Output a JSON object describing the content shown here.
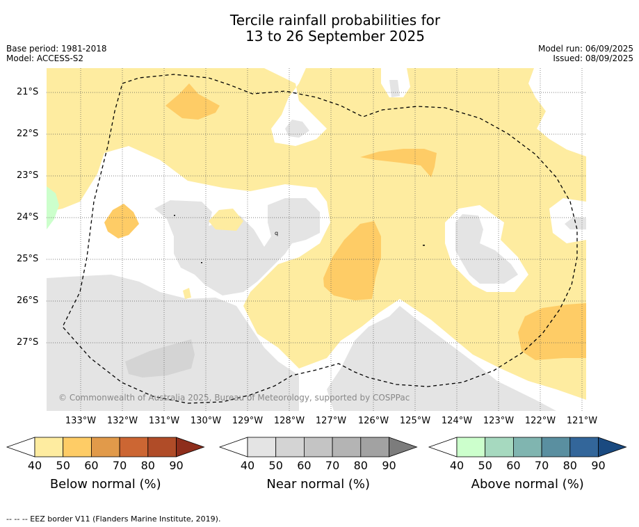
{
  "title_line1": "Tercile rainfall probabilities for",
  "title_line2": "13 to 26 September 2025",
  "meta_left": {
    "base_period": "Base period: 1981-2018",
    "model": "Model: ACCESS-S2"
  },
  "meta_right": {
    "model_run": "Model run: 06/09/2025",
    "issued": "Issued: 08/09/2025"
  },
  "copyright": "© Commonwealth of Australia 2025, Bureau of Meteorology, supported by COSPPac",
  "lat_labels": [
    "21°S",
    "22°S",
    "23°S",
    "24°S",
    "25°S",
    "26°S",
    "27°S"
  ],
  "lon_labels": [
    "133°W",
    "132°W",
    "131°W",
    "130°W",
    "129°W",
    "128°W",
    "127°W",
    "126°W",
    "125°W",
    "124°W",
    "123°W",
    "122°W",
    "121°W"
  ],
  "colorbars": [
    {
      "title": "Below normal (%)",
      "ticks": [
        "40",
        "50",
        "60",
        "70",
        "80",
        "90"
      ],
      "colors": [
        "#ffffff",
        "#feeca0",
        "#fecc66",
        "#e19a4a",
        "#cc6633",
        "#b04c28",
        "#8e2e1c"
      ]
    },
    {
      "title": "Near normal (%)",
      "ticks": [
        "40",
        "50",
        "60",
        "70",
        "80",
        "90"
      ],
      "colors": [
        "#ffffff",
        "#e4e4e4",
        "#d4d4d4",
        "#c4c4c4",
        "#b4b4b4",
        "#a2a2a2",
        "#7c7c7c"
      ]
    },
    {
      "title": "Above normal (%)",
      "ticks": [
        "40",
        "50",
        "60",
        "70",
        "80",
        "90"
      ],
      "colors": [
        "#ffffff",
        "#ccffcc",
        "#a6d9bf",
        "#80b5b0",
        "#5a8fa0",
        "#33669a",
        "#1a4a80"
      ]
    }
  ],
  "footer": "--  --  -- EEZ border V11 (Flanders Marine Institute, 2019).",
  "colors": {
    "below_50": "#feeca0",
    "below_60": "#fecc66",
    "near_50": "#e4e4e4",
    "near_60": "#d4d4d4",
    "above_50": "#ccffcc"
  }
}
